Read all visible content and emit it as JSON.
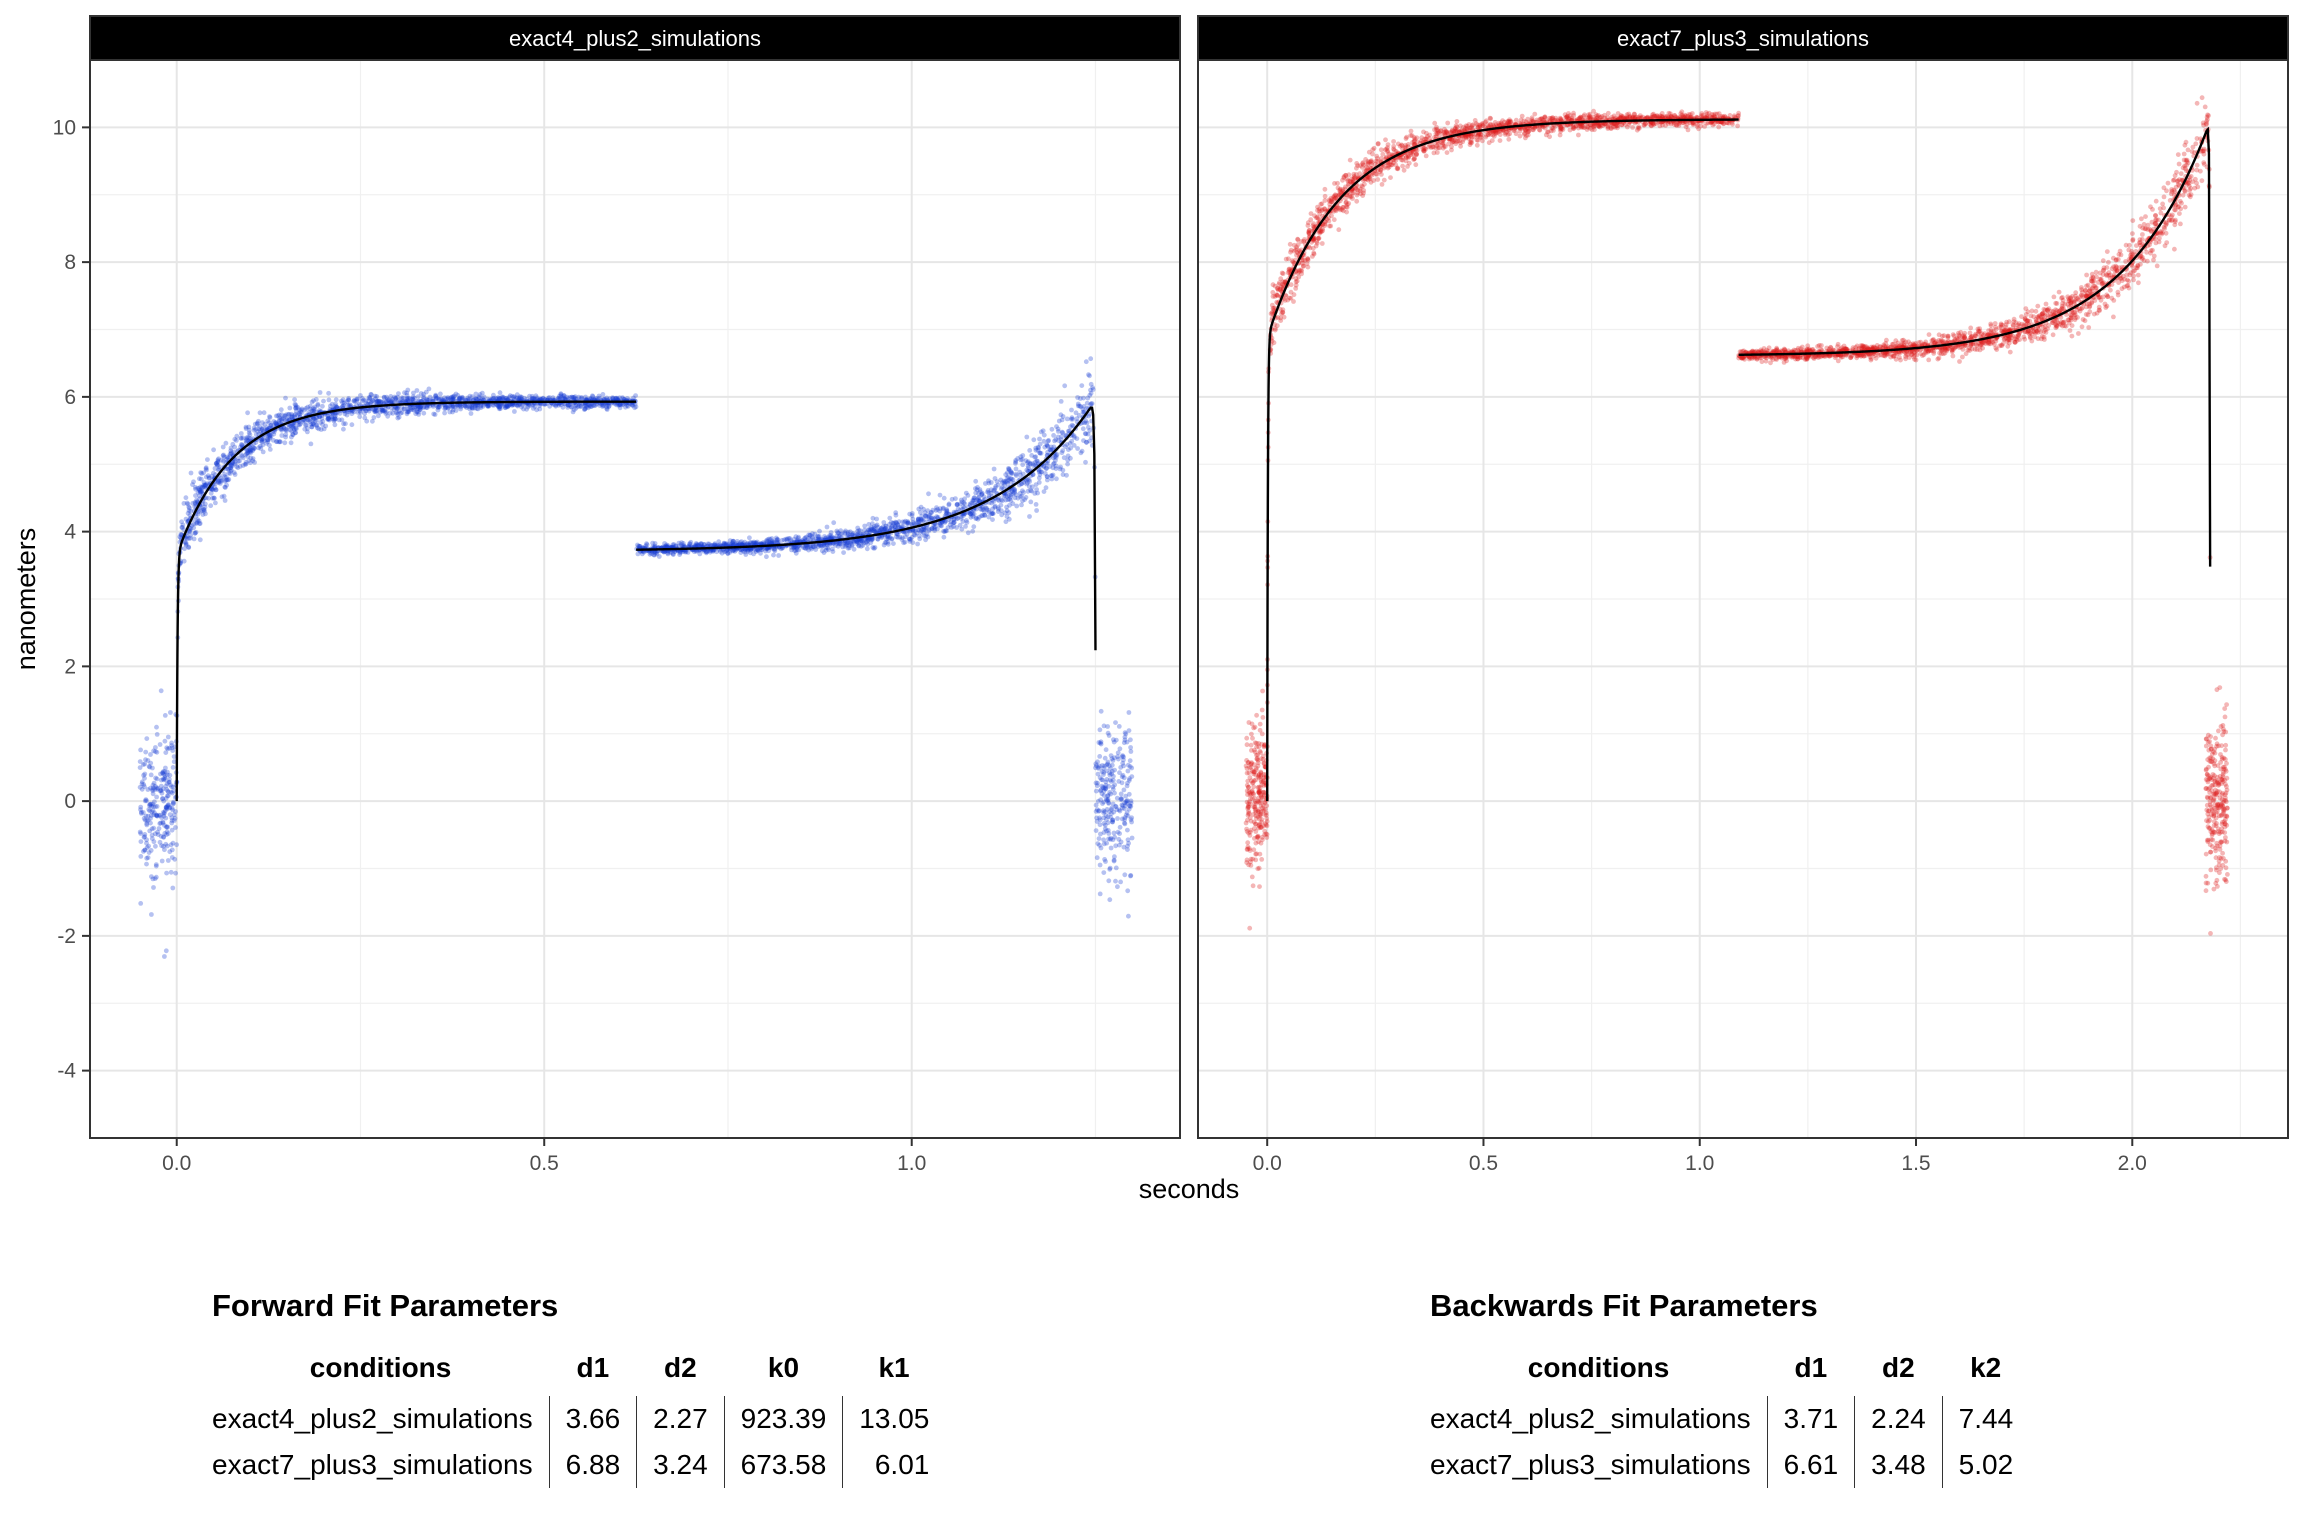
{
  "chart_data": {
    "type": "scatter",
    "xlabel": "seconds",
    "ylabel": "nanometers",
    "y_ticks": [
      "-4",
      "-2",
      "0",
      "2",
      "4",
      "6",
      "8",
      "10"
    ],
    "ylim": [
      -5.0,
      11.0
    ],
    "grid": true,
    "panels": [
      {
        "title": "exact4_plus2_simulations",
        "color": "#1a3fd4",
        "xlim": [
          -0.118,
          1.365
        ],
        "x_ticks": [
          "0.0",
          "0.5",
          "1.0"
        ],
        "scatter_noise": 0.55,
        "baseline_start": {
          "x": [
            -0.05,
            0.0
          ],
          "center": 0.0,
          "spread": 0.55
        },
        "baseline_end": {
          "x": [
            1.25,
            1.3
          ],
          "center": 0.0,
          "spread": 0.55
        },
        "forward_fit": {
          "x_start": 0.0,
          "x_end": 0.625,
          "d1": 3.66,
          "d2": 2.27,
          "k0": 923.39,
          "k1": 13.05
        },
        "backward_fit": {
          "x_start": 0.625,
          "x_end": 1.25,
          "d1": 3.71,
          "d2": 2.24,
          "k2": 7.44
        }
      },
      {
        "title": "exact7_plus3_simulations",
        "color": "#dd1c1c",
        "xlim": [
          -0.16,
          2.36
        ],
        "x_ticks": [
          "0.0",
          "0.5",
          "1.0",
          "1.5",
          "2.0"
        ],
        "scatter_noise": 0.55,
        "baseline_start": {
          "x": [
            -0.05,
            0.0
          ],
          "center": 0.0,
          "spread": 0.55
        },
        "baseline_end": {
          "x": [
            2.17,
            2.22
          ],
          "center": 0.0,
          "spread": 0.6
        },
        "forward_fit": {
          "x_start": 0.0,
          "x_end": 1.09,
          "d1": 6.88,
          "d2": 3.24,
          "k0": 673.58,
          "k1": 6.01
        },
        "backward_fit": {
          "x_start": 1.09,
          "x_end": 2.18,
          "d1": 6.61,
          "d2": 3.48,
          "k2": 5.02
        }
      }
    ]
  },
  "forward_table": {
    "title": "Forward Fit Parameters",
    "headers": [
      "conditions",
      "d1",
      "d2",
      "k0",
      "k1"
    ],
    "rows": [
      [
        "exact4_plus2_simulations",
        "3.66",
        "2.27",
        "923.39",
        "13.05"
      ],
      [
        "exact7_plus3_simulations",
        "6.88",
        "3.24",
        "673.58",
        "6.01"
      ]
    ]
  },
  "backward_table": {
    "title": "Backwards Fit Parameters",
    "headers": [
      "conditions",
      "d1",
      "d2",
      "k2"
    ],
    "rows": [
      [
        "exact4_plus2_simulations",
        "3.71",
        "2.24",
        "7.44"
      ],
      [
        "exact7_plus3_simulations",
        "6.61",
        "3.48",
        "5.02"
      ]
    ]
  }
}
